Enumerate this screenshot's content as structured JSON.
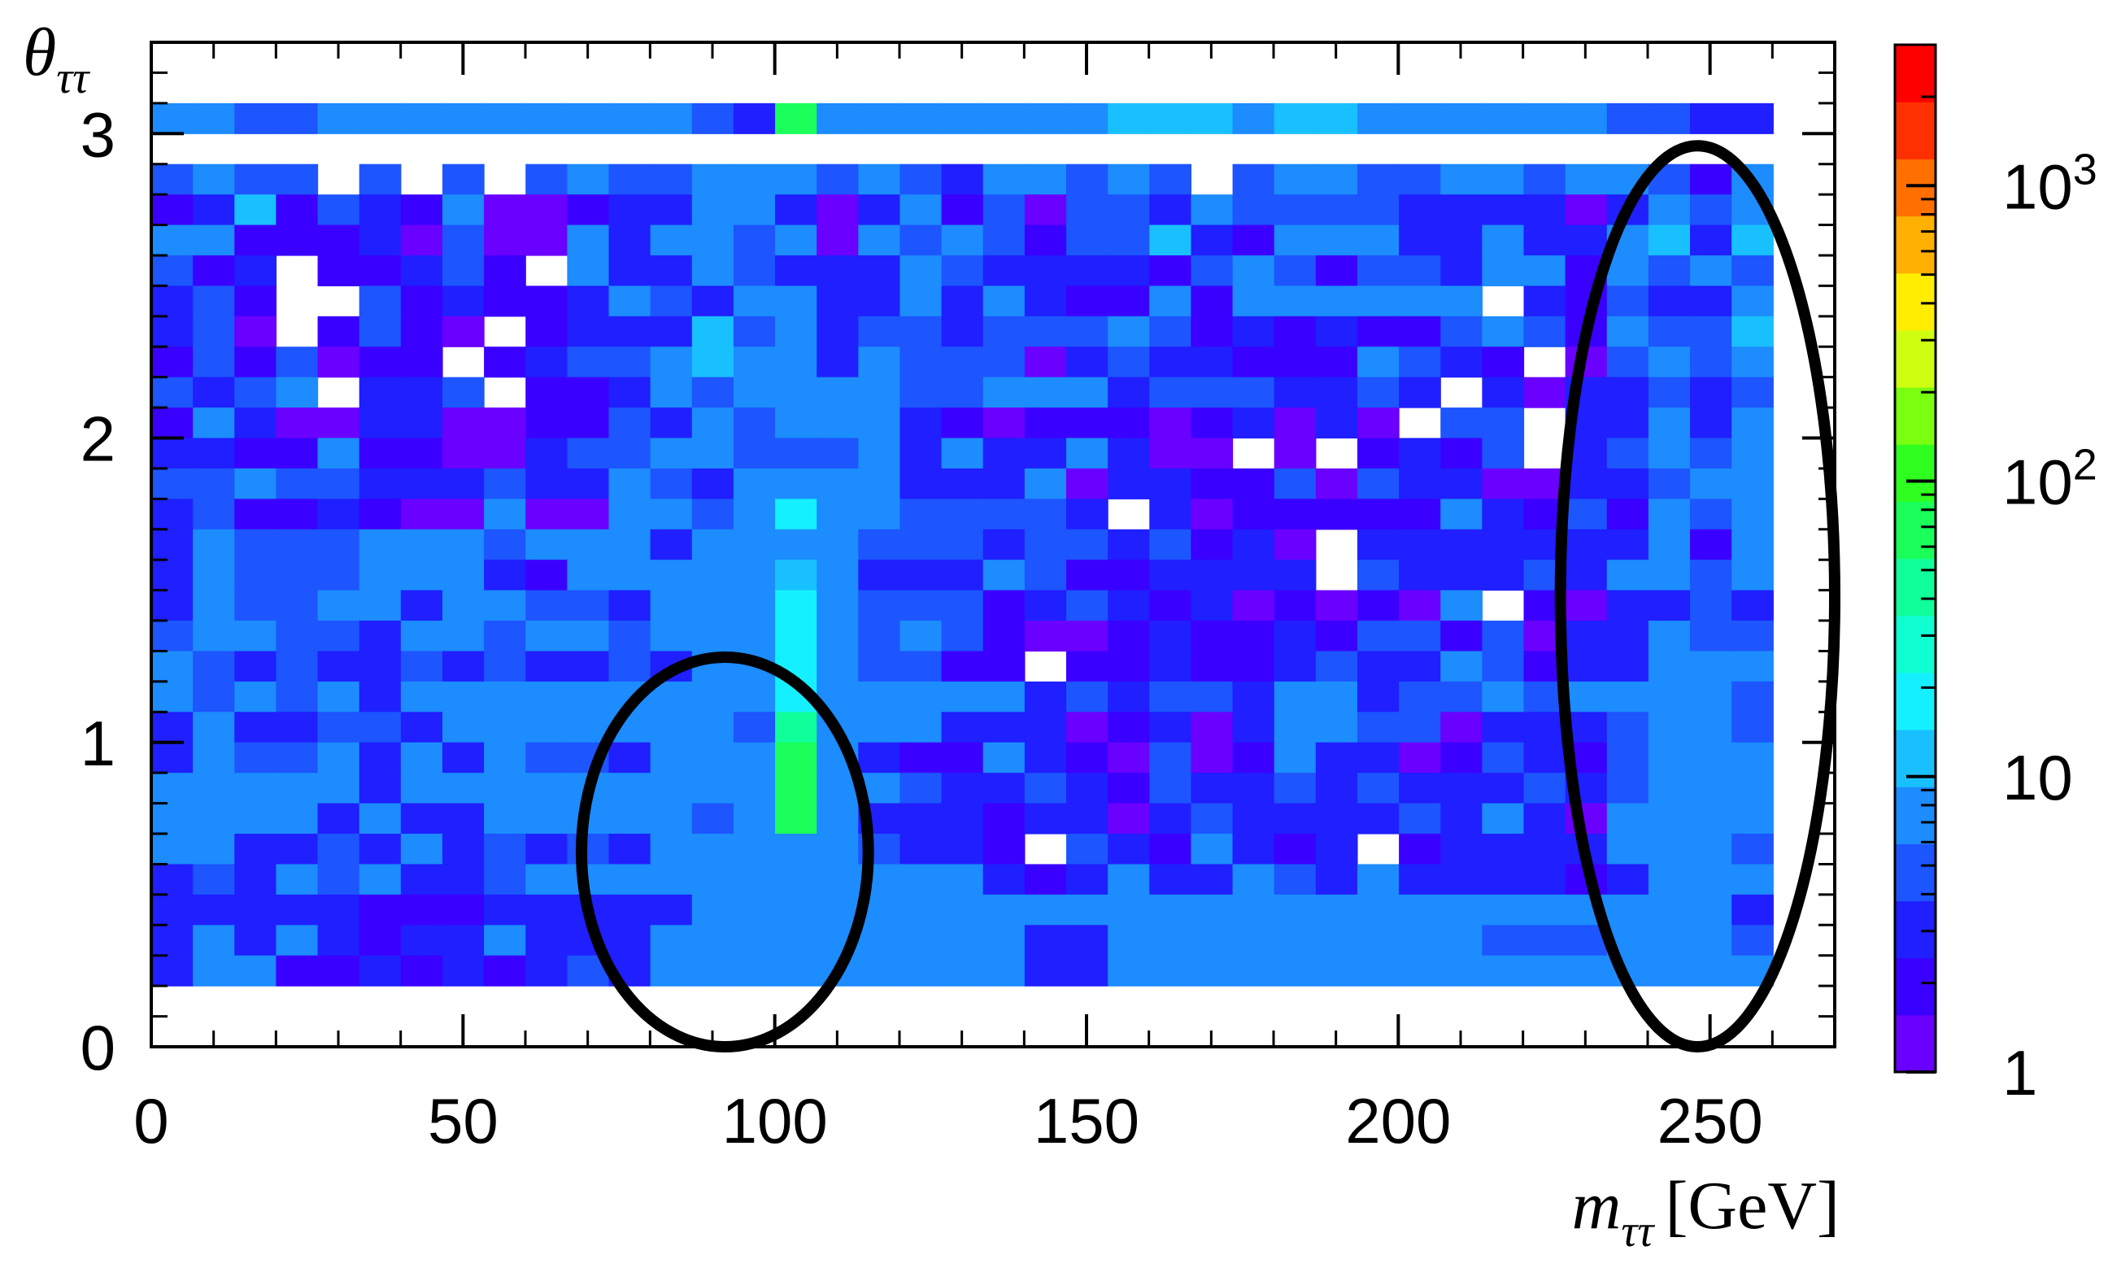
{
  "chart_data": {
    "type": "heatmap",
    "xlabel": "m",
    "xlabel_sub": "ττ",
    "xlabel_unit": "[GeV]",
    "ylabel": "θ",
    "ylabel_sub": "ττ",
    "xlim": [
      0,
      270
    ],
    "ylim": [
      0,
      3.3
    ],
    "x_ticks": [
      "0",
      "50",
      "100",
      "150",
      "200",
      "250"
    ],
    "x_tick_values": [
      0,
      50,
      100,
      150,
      200,
      250
    ],
    "y_ticks": [
      "0",
      "1",
      "2",
      "3"
    ],
    "y_tick_values": [
      0,
      1,
      2,
      3
    ],
    "colorbar": {
      "scale": "log",
      "range": [
        1,
        3000
      ],
      "labels": [
        {
          "value": 1,
          "text": "1"
        },
        {
          "value": 10,
          "text": "10"
        },
        {
          "value": 100,
          "text": "10",
          "sup": "2"
        },
        {
          "value": 1000,
          "text": "10",
          "sup": "3"
        }
      ]
    },
    "bins": {
      "x_start": 0,
      "x_step": 6.67,
      "nx": 39,
      "y_start": 0,
      "y_step": 0.1,
      "ny": 31
    },
    "counts_rows_top_to_bottom": [
      "8 6 5 5 6 8 8 8 8 8 8 8 6 5 3 70 6 8 8 8 8 8 8 10 10 10 8 10 10 7 7 8 6 6 6 5 4 3 3",
      "0 0 0 0 0 0 0 0 0 0 0 0 0 0 0 0 0 0 0 0 0 0 0 0 0 0 0 0 0 0 0 0 0 0 0 0 0 0 0",
      "4 9 4 4 0 4 0 4 0 4 8 4 4 7 7 8 4 7 4 3 7 7 4 7 4 0 4 7 9 4 4 7 7 4 9 7 5 2 8",
      "2 3 10 2 4 3 2 8 1 1 2 3 3 9 8 3 1 3 8 2 4 1 4 5 3 7 4 4 4 4 3 3 3 3 1 3 9 5 8",
      "6 8 2 2 2 3 1 4 1 1 9 3 9 8 5 9 1 8 4 6 4 2 4 4 10 3 2 9 9 6 3 3 6 3 3 9 10 3 10",
      "4 2 3 0 2 2 3 4 2 0 8 3 3 9 4 3 3 3 8 4 3 3 3 3 2 5 9 5 2 5 5 3 6 6 2 6 5 6 4",
      "3 4 2 0 0 4 2 3 2 2 3 8 4 3 6 6 3 3 9 3 9 3 2 2 7 2 9 7 6 9 9 7 0 3 2 4 3 3 9",
      "3 4 1 0 2 4 2 1 0 2 3 3 3 10 5 7 3 5 5 3 4 4 4 8 4 2 3 2 3 2 2 4 9 5 2 7 5 4 10",
      "2 4 2 4 1 2 2 0 2 3 5 5 9 10 7 9 3 8 4 4 4 1 3 5 3 3 2 2 2 9 4 3 2 0 1 4 7 5 9",
      "4 3 4 9 0 3 3 4 0 2 2 3 7 4 8 7 7 7 4 4 7 8 7 3 4 5 5 3 3 4 3 0 3 1 3 3 4 3 4",
      "2 6 3 1 1 3 3 1 1 2 2 4 3 7 5 6 6 9 3 2 1 2 2 2 1 2 3 1 3 1 0 4 4 0 3 3 6 3 8",
      "3 3 2 2 9 2 2 1 1 3 4 4 6 6 4 5 4 9 3 9 3 3 9 3 1 1 0 1 0 2 3 2 4 0 3 4 9 4 8",
      "4 4 9 4 4 3 3 3 4 3 3 9 4 3 7 7 6 8 3 3 3 6 1 3 3 2 2 4 1 4 3 3 1 1 3 3 5 8 9",
      "3 4 2 2 3 2 1 1 9 1 1 9 9 5 7 20 6 6 5 5 4 4 3 0 3 1 2 2 2 2 2 9 3 2 4 2 8 4 9",
      "3 8 4 4 4 9 9 9 4 9 9 8 3 7 6 7 6 5 5 4 3 4 5 3 4 2 3 1 0 3 3 3 3 3 3 3 8 2 9",
      "3 8 4 4 4 9 9 9 3 2 6 9 7 6 6 13 6 3 3 3 6 5 2 2 3 3 3 3 0 4 3 3 3 5 3 9 8 5 9",
      "3 8 4 4 9 9 3 9 9 5 5 3 8 7 6 20 7 5 5 5 2 3 4 3 2 3 1 2 1 2 1 9 0 2 1 3 3 4 3",
      "4 8 8 4 4 3 8 8 5 9 9 5 8 7 6 20 7 5 8 4 2 1 1 2 3 2 2 3 2 4 4 2 4 1 3 3 8 5 4",
      "8 4 3 4 3 3 5 3 4 3 3 4 3 6 7 20 6 5 4 2 2 0 2 2 3 2 2 3 4 3 3 8 4 2 3 3 6 7 9",
      "8 4 9 4 9 3 9 9 9 9 9 8 9 6 6 20 7 6 7 7 7 3 4 3 4 4 3 9 9 3 4 4 9 4 9 9 9 9 4",
      "3 9 3 3 4 4 3 9 9 8 8 9 9 7 5 50 8 7 9 3 3 3 1 2 3 1 3 9 9 4 4 1 3 3 3 4 8 7 5",
      "3 8 4 4 9 3 9 3 9 5 5 3 8 7 6 70 7 3 2 2 9 3 2 1 4 1 2 9 3 3 1 2 4 3 2 4 6 7 9",
      "9 9 8 9 9 3 9 8 9 8 9 8 8 6 7 70 7 7 4 3 3 4 3 2 4 3 3 4 3 4 3 3 3 4 3 4 7 6 9",
      "8 9 8 9 3 9 3 3 9 8 9 8 9 5 7 70 7 3 3 3 2 3 3 1 3 4 3 3 3 3 4 3 9 3 1 9 7 6 9",
      "9 8 3 3 4 3 9 3 4 3 4 3 9 7 8 6 8 4 3 3 2 0 4 3 2 9 3 2 3 0 2 3 3 3 3 9 8 6 4",
      "3 4 3 9 4 9 3 3 4 9 9 8 8 6 9 6 7 9 9 9 3 2 3 9 3 3 9 4 3 9 3 3 3 3 2 3 7 8 8",
      "3 3 3 3 3 2 2 2 3 3 3 3 3 6 8 6 8 8 8 8 8 8 9 8 8 8 8 8 9 8 8 8 8 9 9 9 9 9 3",
      "3 9 3 9 3 2 3 3 9 3 3 3 9 6 9 6 9 9 8 8 9 3 3 9 8 9 9 9 8 8 9 8 5 5 5 6 9 8 4",
      "3 9 9 2 2 3 2 3 2 3 4 3 9 8 9 6 9 9 8 8 9 3 3 9 9 9 9 9 9 9 8 8 8 6 6 6 6 9 8",
      "0 0 0 0 0 0 0 0 0 0 0 0 0 0 0 0 0 0 0 0 0 0 0 0 0 0 0 0 0 0 0 0 0 0 0 0 0 0 0",
      "0 0 0 0 0 0 0 0 0 0 0 0 0 0 0 0 0 0 0 0 0 0 0 0 0 0 0 0 0 0 0 0 0 0 0 0 0 0 0"
    ],
    "annotations": [
      {
        "shape": "ellipse",
        "cx": 92,
        "cy": 0.64,
        "rx": 23,
        "ry": 0.64
      },
      {
        "shape": "ellipse",
        "cx": 248,
        "cy": 1.48,
        "rx": 22,
        "ry": 1.48
      }
    ]
  }
}
